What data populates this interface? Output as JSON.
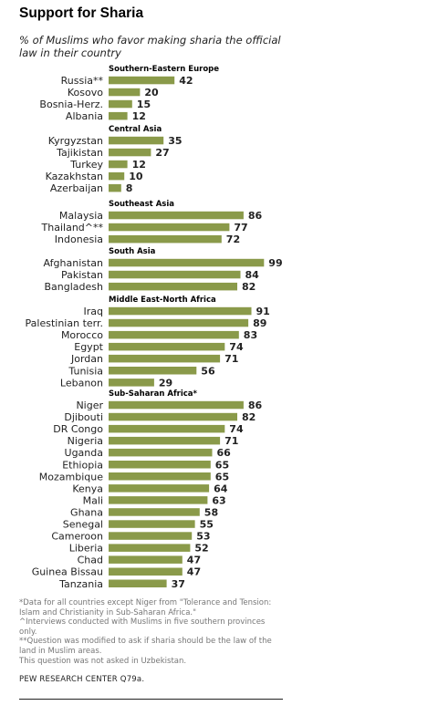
{
  "header": {
    "title": "Support for Sharia",
    "subtitle": "% of Muslims who favor making sharia the official law in their country"
  },
  "colors": {
    "bar": "#8a9a4a",
    "text": "#222222"
  },
  "chart_data": {
    "type": "bar",
    "orientation": "horizontal",
    "title": "Support for Sharia",
    "subtitle": "% of Muslims who favor making sharia the official law in their country",
    "xlim": [
      0,
      100
    ],
    "groups": [
      {
        "name": "Southern-Eastern  Europe",
        "items": [
          {
            "label": "Russia**",
            "value": 42
          },
          {
            "label": "Kosovo",
            "value": 20
          },
          {
            "label": "Bosnia-Herz.",
            "value": 15
          },
          {
            "label": "Albania",
            "value": 12
          }
        ]
      },
      {
        "name": "Central Asia",
        "items": [
          {
            "label": "Kyrgyzstan",
            "value": 35
          },
          {
            "label": "Tajikistan",
            "value": 27
          },
          {
            "label": "Turkey",
            "value": 12
          },
          {
            "label": "Kazakhstan",
            "value": 10
          },
          {
            "label": "Azerbaijan",
            "value": 8
          }
        ]
      },
      {
        "name": "Southeast  Asia",
        "items": [
          {
            "label": "Malaysia",
            "value": 86
          },
          {
            "label": "Thailand^**",
            "value": 77
          },
          {
            "label": "Indonesia",
            "value": 72
          }
        ]
      },
      {
        "name": "South  Asia",
        "items": [
          {
            "label": "Afghanistan",
            "value": 99
          },
          {
            "label": "Pakistan",
            "value": 84
          },
          {
            "label": "Bangladesh",
            "value": 82
          }
        ]
      },
      {
        "name": "Middle East-North Africa",
        "items": [
          {
            "label": "Iraq",
            "value": 91
          },
          {
            "label": "Palestinian terr.",
            "value": 89
          },
          {
            "label": "Morocco",
            "value": 83
          },
          {
            "label": "Egypt",
            "value": 74
          },
          {
            "label": "Jordan",
            "value": 71
          },
          {
            "label": "Tunisia",
            "value": 56
          },
          {
            "label": "Lebanon",
            "value": 29
          }
        ]
      },
      {
        "name": "Sub-Saharan  Africa*",
        "items": [
          {
            "label": "Niger",
            "value": 86
          },
          {
            "label": "Djibouti",
            "value": 82
          },
          {
            "label": "DR Congo",
            "value": 74
          },
          {
            "label": "Nigeria",
            "value": 71
          },
          {
            "label": "Uganda",
            "value": 66
          },
          {
            "label": "Ethiopia",
            "value": 65
          },
          {
            "label": "Mozambique",
            "value": 65
          },
          {
            "label": "Kenya",
            "value": 64
          },
          {
            "label": "Mali",
            "value": 63
          },
          {
            "label": "Ghana",
            "value": 58
          },
          {
            "label": "Senegal",
            "value": 55
          },
          {
            "label": "Cameroon",
            "value": 53
          },
          {
            "label": "Liberia",
            "value": 52
          },
          {
            "label": "Chad",
            "value": 47
          },
          {
            "label": "Guinea Bissau",
            "value": 47
          },
          {
            "label": "Tanzania",
            "value": 37
          }
        ]
      }
    ]
  },
  "footnotes": [
    "*Data for all countries except Niger from \"Tolerance and Tension: Islam and Christianity in Sub-Saharan Africa.\"",
    "^Interviews conducted with Muslims in five southern provinces only.",
    "**Question was modified to ask if sharia should be the law of the land in Muslim areas.",
    "This question was not asked in Uzbekistan."
  ],
  "source": "PEW RESEARCH CENTER Q79a."
}
